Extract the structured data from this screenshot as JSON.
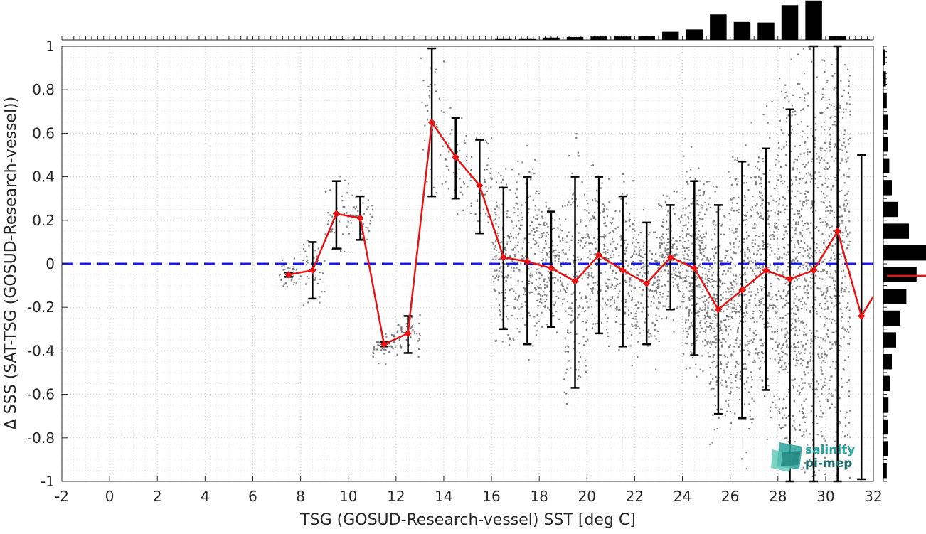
{
  "chart_data": {
    "type": "scatter",
    "xlabel": "TSG (GOSUD-Research-vessel) SST [deg C]",
    "ylabel": "Δ SSS (SAT-TSG (GOSUD-Research-vessel))",
    "xlim": [
      -2,
      32
    ],
    "ylim": [
      -1,
      1
    ],
    "x_ticks": [
      "-2",
      "0",
      "2",
      "4",
      "6",
      "8",
      "10",
      "12",
      "14",
      "16",
      "18",
      "20",
      "22",
      "24",
      "26",
      "28",
      "30",
      "32"
    ],
    "y_ticks": [
      "1",
      "0.8",
      "0.6",
      "0.4",
      "0.2",
      "0",
      "-0.2",
      "-0.4",
      "-0.6",
      "-0.8",
      "-1"
    ],
    "grid": true,
    "reference_line": {
      "y": 0,
      "style": "dashed",
      "color": "#1a1ae6"
    },
    "scatter_color": "#808080",
    "series": [
      {
        "color": "#e61414",
        "x": [
          7.5,
          8.5,
          9.5,
          10.5,
          11.5,
          12.5,
          13.5,
          14.5,
          15.5,
          16.5,
          17.5,
          18.5,
          19.5,
          20.5,
          21.5,
          22.5,
          23.5,
          24.5,
          25.5,
          26.5,
          27.5,
          28.5,
          29.5,
          30.5,
          31.5
        ],
        "y": [
          -0.05,
          -0.03,
          0.23,
          0.21,
          -0.37,
          -0.32,
          0.65,
          0.49,
          0.36,
          0.03,
          0.01,
          -0.02,
          -0.08,
          0.04,
          -0.03,
          -0.09,
          0.03,
          -0.02,
          -0.21,
          -0.12,
          -0.03,
          -0.07,
          -0.03,
          0.15,
          -0.24
        ],
        "y_low": [
          -0.06,
          -0.16,
          0.07,
          0.11,
          -0.38,
          -0.41,
          0.31,
          0.3,
          0.14,
          -0.3,
          -0.37,
          -0.29,
          -0.57,
          -0.32,
          -0.38,
          -0.37,
          -0.21,
          -0.42,
          -0.69,
          -0.71,
          -0.58,
          -1.0,
          -1.0,
          -1.0,
          -0.99
        ],
        "y_high": [
          -0.04,
          0.1,
          0.38,
          0.31,
          -0.36,
          -0.24,
          0.99,
          0.67,
          0.57,
          0.35,
          0.4,
          0.24,
          0.4,
          0.4,
          0.31,
          0.19,
          0.27,
          0.38,
          0.27,
          0.47,
          0.53,
          0.71,
          1.0,
          1.0,
          0.5
        ]
      }
    ],
    "top_histogram": {
      "bin_centers": [
        8.5,
        9.5,
        10.5,
        11.5,
        12.5,
        13.5,
        14.5,
        15.5,
        16.5,
        17.5,
        18.5,
        19.5,
        20.5,
        21.5,
        22.5,
        23.5,
        24.5,
        25.5,
        26.5,
        27.5,
        28.5,
        29.5,
        30.5,
        31.5
      ],
      "values": [
        0.005,
        0.01,
        0.01,
        0.002,
        0.002,
        0.005,
        0.004,
        0.005,
        0.015,
        0.015,
        0.04,
        0.05,
        0.06,
        0.06,
        0.07,
        0.14,
        0.18,
        0.44,
        0.31,
        0.3,
        0.6,
        0.68,
        0.07,
        0.01
      ]
    },
    "right_histogram": {
      "bin_centers": [
        0.95,
        0.85,
        0.75,
        0.65,
        0.55,
        0.45,
        0.35,
        0.25,
        0.15,
        0.05,
        -0.05,
        -0.15,
        -0.25,
        -0.35,
        -0.45,
        -0.55,
        -0.65,
        -0.75,
        -0.85,
        -0.95
      ],
      "values": [
        0.04,
        0.06,
        0.08,
        0.1,
        0.1,
        0.14,
        0.2,
        0.34,
        0.6,
        1.0,
        0.78,
        0.54,
        0.4,
        0.3,
        0.2,
        0.15,
        0.12,
        0.1,
        0.1,
        0.08
      ],
      "median": -0.055
    }
  },
  "logo": {
    "line1": "salinity",
    "line2": "pi-mep"
  }
}
